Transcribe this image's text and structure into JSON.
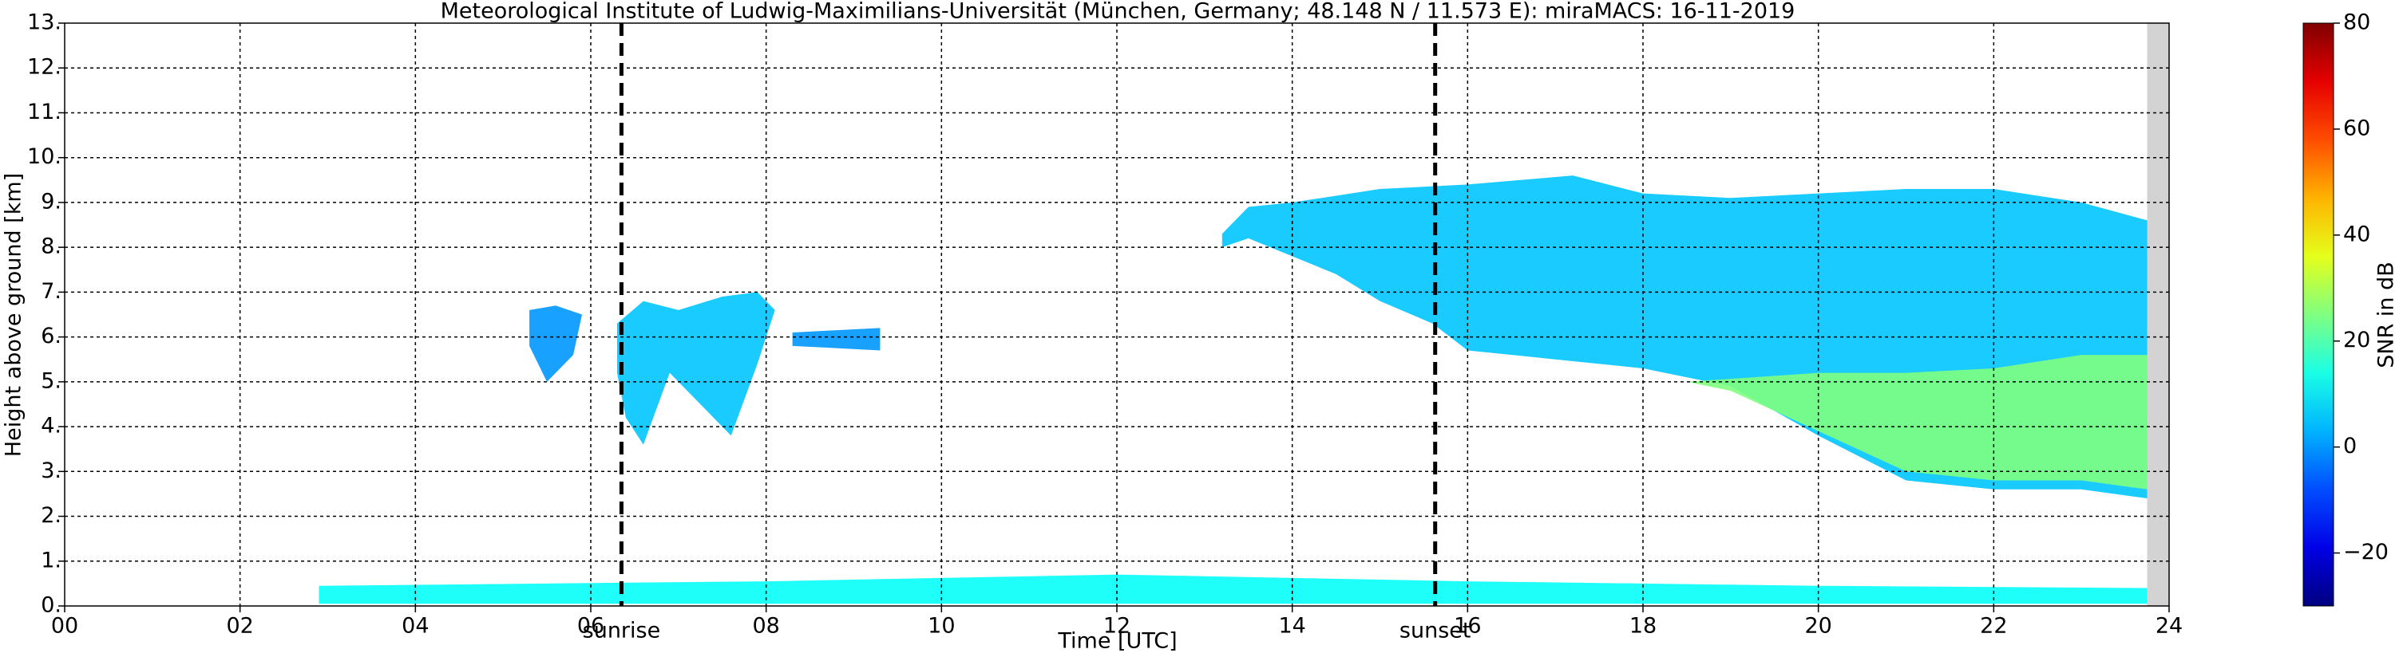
{
  "chart_data": {
    "type": "heatmap",
    "title": "Meteorological Institute of Ludwig-Maximilians-Universität (München, Germany; 48.148 N / 11.573 E):    miraMACS: 16-11-2019",
    "xlabel": "Time [UTC]",
    "ylabel": "Height above ground [km]",
    "xlim": [
      0,
      24
    ],
    "xticks": [
      {
        "value": 0,
        "label": "00"
      },
      {
        "value": 2,
        "label": "02"
      },
      {
        "value": 4,
        "label": "04"
      },
      {
        "value": 6,
        "label": "06"
      },
      {
        "value": 8,
        "label": "08"
      },
      {
        "value": 10,
        "label": "10"
      },
      {
        "value": 12,
        "label": "12"
      },
      {
        "value": 14,
        "label": "14"
      },
      {
        "value": 16,
        "label": "16"
      },
      {
        "value": 18,
        "label": "18"
      },
      {
        "value": 20,
        "label": "20"
      },
      {
        "value": 22,
        "label": "22"
      },
      {
        "value": 24,
        "label": "24"
      }
    ],
    "ylim": [
      0,
      13
    ],
    "yticks": [
      {
        "value": 0,
        "label": "0."
      },
      {
        "value": 1,
        "label": "1."
      },
      {
        "value": 2,
        "label": "2."
      },
      {
        "value": 3,
        "label": "3."
      },
      {
        "value": 4,
        "label": "4."
      },
      {
        "value": 5,
        "label": "5."
      },
      {
        "value": 6,
        "label": "6."
      },
      {
        "value": 7,
        "label": "7."
      },
      {
        "value": 8,
        "label": "8."
      },
      {
        "value": 9,
        "label": "9."
      },
      {
        "value": 10,
        "label": "10."
      },
      {
        "value": 11,
        "label": "11."
      },
      {
        "value": 12,
        "label": "12."
      },
      {
        "value": 13,
        "label": "13."
      }
    ],
    "grid": true,
    "colorbar": {
      "label": "SNR in dB",
      "lim": [
        -30,
        80
      ],
      "colormap": "jet",
      "ticks": [
        {
          "value": -20,
          "label": "−20"
        },
        0,
        20,
        40,
        60,
        80
      ]
    },
    "nodata_xrange": [
      23.75,
      24
    ],
    "events": [
      {
        "x": 6.35,
        "label": "sunrise"
      },
      {
        "x": 15.63,
        "label": "sunset"
      }
    ],
    "regions": [
      {
        "x": [
          2.9,
          8,
          12,
          16,
          20,
          23.75,
          23.75,
          20,
          16,
          12,
          8,
          2.9
        ],
        "y": [
          0.45,
          0.55,
          0.7,
          0.55,
          0.45,
          0.4,
          0.05,
          0.05,
          0.05,
          0.05,
          0.05,
          0.05
        ],
        "value": 12
      },
      {
        "x": [
          5.3,
          5.6,
          5.9,
          5.8,
          5.5,
          5.3
        ],
        "y": [
          6.6,
          6.7,
          6.5,
          5.6,
          5.0,
          5.8
        ],
        "value": 0
      },
      {
        "x": [
          6.3,
          6.6,
          7.0,
          7.5,
          7.9,
          8.1,
          7.9,
          7.6,
          7.2,
          6.9,
          6.6,
          6.4,
          6.3
        ],
        "y": [
          6.3,
          6.8,
          6.6,
          6.9,
          7.0,
          6.6,
          5.4,
          3.8,
          4.6,
          5.2,
          3.6,
          4.2,
          5.2
        ],
        "value": 5
      },
      {
        "x": [
          8.3,
          9.3,
          9.3,
          8.3
        ],
        "y": [
          6.1,
          6.2,
          5.7,
          5.8
        ],
        "value": 0
      },
      {
        "x": [
          13.2,
          13.5,
          14,
          15,
          16,
          17.2,
          18,
          19,
          20,
          21,
          22,
          23,
          23.75,
          23.75,
          23,
          22,
          21,
          20,
          19,
          18,
          17,
          16,
          15.6,
          15,
          14.5,
          14,
          13.5,
          13.2
        ],
        "y": [
          8.3,
          8.9,
          9.0,
          9.3,
          9.4,
          9.6,
          9.2,
          9.1,
          9.2,
          9.3,
          9.3,
          9.0,
          8.6,
          2.4,
          2.6,
          2.6,
          2.8,
          3.8,
          4.9,
          5.3,
          5.5,
          5.7,
          6.3,
          6.8,
          7.4,
          7.8,
          8.2,
          8.0
        ],
        "value": 5
      },
      {
        "x": [
          18.5,
          20,
          21,
          22,
          23,
          23.75,
          23.75,
          23,
          22,
          21,
          20,
          19
        ],
        "y": [
          5.0,
          5.2,
          5.2,
          5.3,
          5.6,
          5.6,
          2.6,
          2.8,
          2.8,
          3.0,
          3.9,
          4.8
        ],
        "value": 25
      }
    ]
  }
}
